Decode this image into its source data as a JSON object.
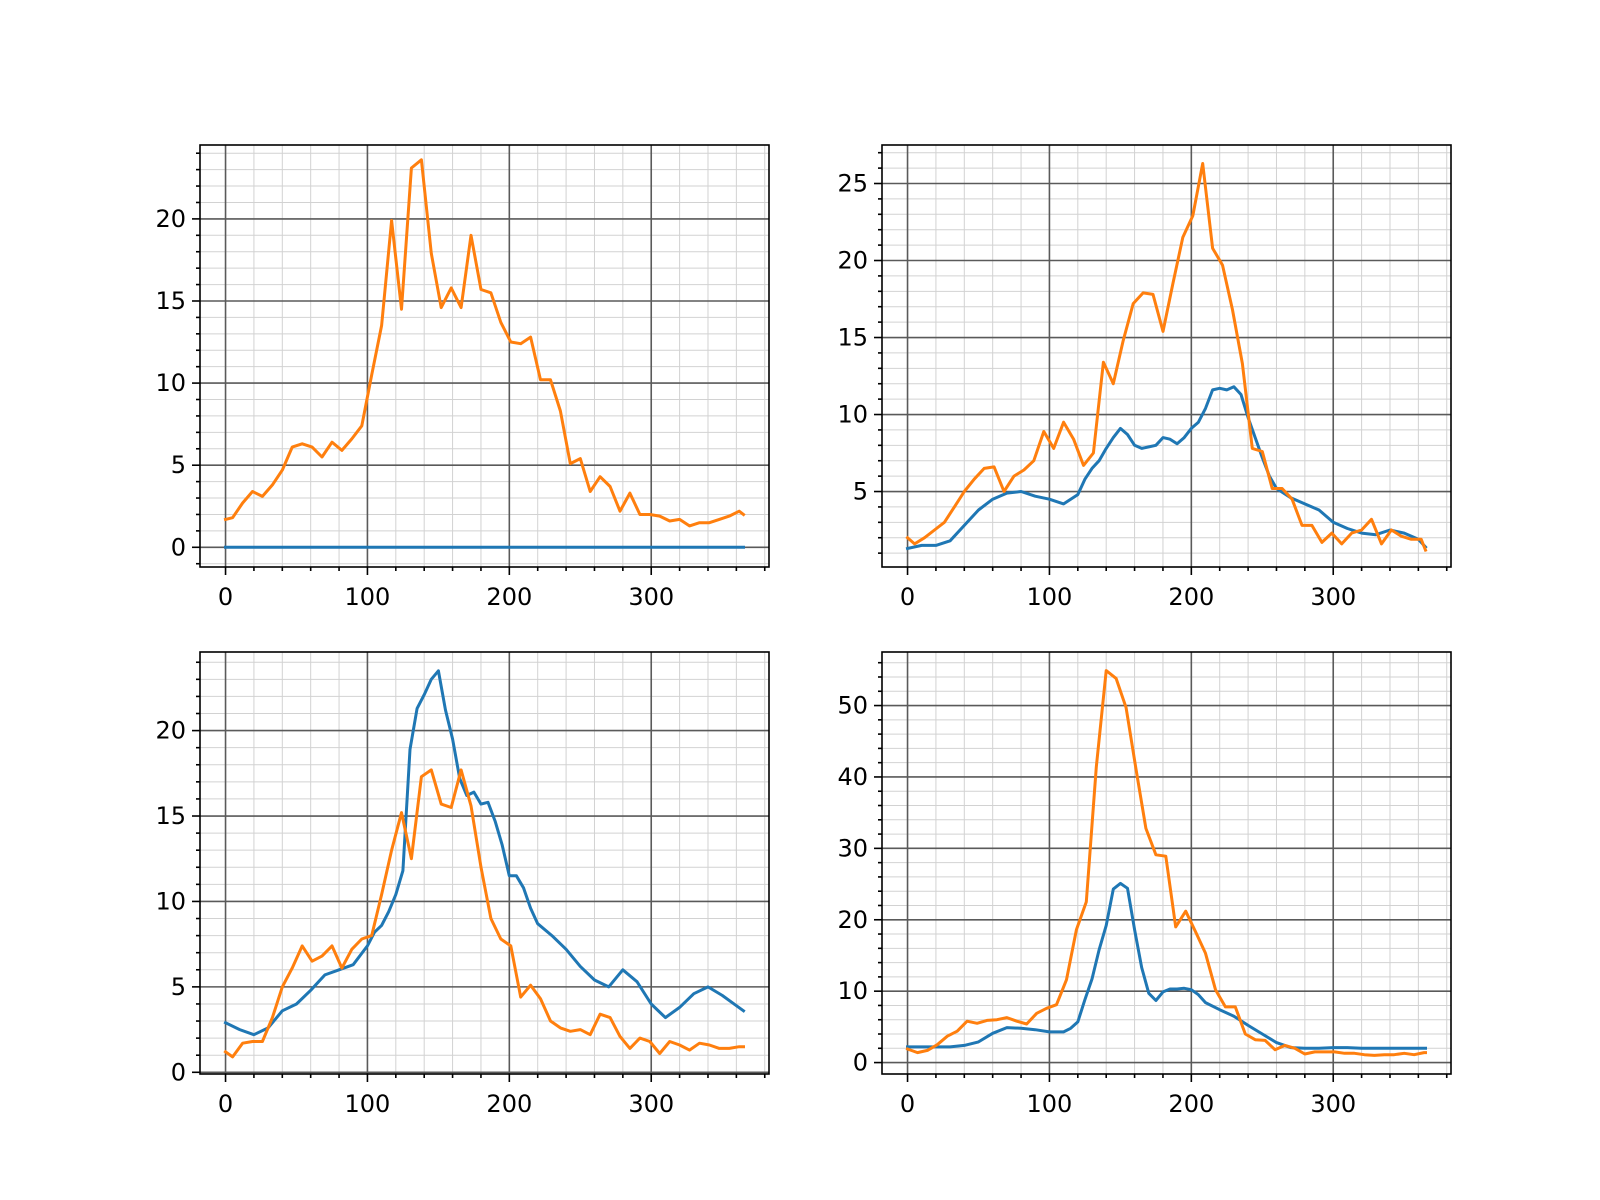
{
  "colors": {
    "series_1": "#1f77b4",
    "series_2": "#ff7f0e"
  },
  "chart_data": [
    {
      "type": "line",
      "xlim": [
        -18,
        383
      ],
      "ylim": [
        -1.2,
        24.5
      ],
      "x_ticks": [
        0,
        100,
        200,
        300
      ],
      "y_ticks": [
        0,
        5,
        10,
        15,
        20
      ],
      "x_minor_step": 20,
      "y_minor_step": 1,
      "grid": "major and minor",
      "series": [
        {
          "color": "#1f77b4",
          "x": [
            0,
            365
          ],
          "y": [
            0,
            0
          ]
        },
        {
          "color": "#ff7f0e",
          "x": [
            0,
            5,
            12,
            19,
            26,
            33,
            40,
            47,
            54,
            61,
            68,
            75,
            82,
            89,
            96,
            103,
            110,
            117,
            124,
            131,
            138,
            145,
            152,
            159,
            166,
            173,
            180,
            187,
            194,
            201,
            208,
            215,
            222,
            229,
            236,
            243,
            250,
            257,
            264,
            271,
            278,
            285,
            292,
            299,
            306,
            313,
            320,
            327,
            334,
            341,
            348,
            355,
            362,
            365
          ],
          "y": [
            1.7,
            1.8,
            2.7,
            3.4,
            3.1,
            3.8,
            4.7,
            6.1,
            6.3,
            6.1,
            5.5,
            6.4,
            5.9,
            6.6,
            7.4,
            10.5,
            13.5,
            19.9,
            14.5,
            23.1,
            23.6,
            17.9,
            14.6,
            15.8,
            14.6,
            19.0,
            15.7,
            15.5,
            13.7,
            12.5,
            12.4,
            12.8,
            10.2,
            10.2,
            8.3,
            5.1,
            5.4,
            3.4,
            4.3,
            3.7,
            2.2,
            3.3,
            2.0,
            2.0,
            1.9,
            1.6,
            1.7,
            1.3,
            1.5,
            1.5,
            1.7,
            1.9,
            2.2,
            2.0
          ]
        }
      ]
    },
    {
      "type": "line",
      "xlim": [
        -18,
        383
      ],
      "ylim": [
        0.1,
        27.5
      ],
      "x_ticks": [
        0,
        100,
        200,
        300
      ],
      "y_ticks": [
        5,
        10,
        15,
        20,
        25
      ],
      "x_minor_step": 20,
      "y_minor_step": 1,
      "grid": "major and minor",
      "series": [
        {
          "color": "#1f77b4",
          "x": [
            0,
            10,
            20,
            30,
            40,
            50,
            60,
            70,
            80,
            90,
            100,
            110,
            120,
            125,
            130,
            135,
            140,
            145,
            150,
            155,
            160,
            165,
            170,
            175,
            180,
            185,
            190,
            195,
            200,
            205,
            210,
            215,
            220,
            225,
            230,
            235,
            240,
            245,
            250,
            255,
            260,
            270,
            280,
            290,
            300,
            310,
            320,
            330,
            340,
            350,
            360,
            365
          ],
          "y": [
            1.3,
            1.5,
            1.5,
            1.8,
            2.8,
            3.8,
            4.5,
            4.9,
            5.0,
            4.7,
            4.5,
            4.2,
            4.8,
            5.8,
            6.5,
            7.0,
            7.8,
            8.5,
            9.1,
            8.7,
            8.0,
            7.8,
            7.9,
            8.0,
            8.5,
            8.4,
            8.1,
            8.5,
            9.1,
            9.5,
            10.4,
            11.6,
            11.7,
            11.6,
            11.8,
            11.3,
            9.8,
            8.5,
            7.2,
            6.0,
            5.2,
            4.6,
            4.2,
            3.8,
            3.0,
            2.6,
            2.3,
            2.2,
            2.5,
            2.3,
            1.9,
            1.4
          ]
        },
        {
          "color": "#ff7f0e",
          "x": [
            0,
            5,
            12,
            19,
            26,
            33,
            40,
            47,
            54,
            61,
            68,
            75,
            82,
            89,
            96,
            103,
            110,
            117,
            124,
            131,
            138,
            145,
            152,
            159,
            166,
            173,
            180,
            187,
            194,
            201,
            208,
            215,
            222,
            229,
            236,
            243,
            250,
            257,
            264,
            271,
            278,
            285,
            292,
            299,
            306,
            313,
            320,
            327,
            334,
            341,
            348,
            355,
            362,
            365
          ],
          "y": [
            2.0,
            1.6,
            2.0,
            2.5,
            3.0,
            4.0,
            5.0,
            5.8,
            6.5,
            6.6,
            5.0,
            6.0,
            6.4,
            7.0,
            8.9,
            7.8,
            9.5,
            8.4,
            6.7,
            7.5,
            13.4,
            12.0,
            14.8,
            17.2,
            17.9,
            17.8,
            15.4,
            18.5,
            21.5,
            22.9,
            26.3,
            20.8,
            19.7,
            16.8,
            13.3,
            7.8,
            7.6,
            5.2,
            5.2,
            4.5,
            2.8,
            2.8,
            1.7,
            2.3,
            1.6,
            2.3,
            2.5,
            3.2,
            1.6,
            2.5,
            2.1,
            1.9,
            1.9,
            1.2
          ]
        }
      ]
    },
    {
      "type": "line",
      "xlim": [
        -18,
        383
      ],
      "ylim": [
        -0.1,
        24.6
      ],
      "x_ticks": [
        0,
        100,
        200,
        300
      ],
      "y_ticks": [
        0,
        5,
        10,
        15,
        20
      ],
      "x_minor_step": 20,
      "y_minor_step": 1,
      "grid": "major and minor",
      "series": [
        {
          "color": "#1f77b4",
          "x": [
            0,
            10,
            20,
            30,
            40,
            50,
            60,
            70,
            80,
            90,
            100,
            105,
            110,
            115,
            120,
            125,
            130,
            135,
            140,
            145,
            150,
            155,
            160,
            165,
            170,
            175,
            180,
            185,
            190,
            195,
            200,
            205,
            210,
            215,
            220,
            230,
            240,
            250,
            260,
            270,
            280,
            290,
            300,
            310,
            320,
            330,
            340,
            350,
            360,
            365
          ],
          "y": [
            2.9,
            2.5,
            2.2,
            2.6,
            3.6,
            4.0,
            4.8,
            5.7,
            6.0,
            6.3,
            7.4,
            8.2,
            8.6,
            9.4,
            10.4,
            11.8,
            18.9,
            21.3,
            22.1,
            23.0,
            23.5,
            21.2,
            19.5,
            17.2,
            16.2,
            16.4,
            15.7,
            15.8,
            14.7,
            13.3,
            11.5,
            11.5,
            10.8,
            9.6,
            8.7,
            8.0,
            7.2,
            6.2,
            5.4,
            5.0,
            6.0,
            5.3,
            4.0,
            3.2,
            3.8,
            4.6,
            5.0,
            4.5,
            3.9,
            3.6
          ]
        },
        {
          "color": "#ff7f0e",
          "x": [
            0,
            5,
            12,
            19,
            26,
            33,
            40,
            47,
            54,
            61,
            68,
            75,
            82,
            89,
            96,
            103,
            110,
            117,
            124,
            131,
            138,
            145,
            152,
            159,
            166,
            173,
            180,
            187,
            194,
            201,
            208,
            215,
            222,
            229,
            236,
            243,
            250,
            257,
            264,
            271,
            278,
            285,
            292,
            299,
            306,
            313,
            320,
            327,
            334,
            341,
            348,
            355,
            362,
            365
          ],
          "y": [
            1.2,
            0.9,
            1.7,
            1.8,
            1.8,
            3.2,
            5.0,
            6.1,
            7.4,
            6.5,
            6.8,
            7.4,
            6.1,
            7.2,
            7.8,
            8.0,
            10.4,
            13.0,
            15.2,
            12.5,
            17.3,
            17.7,
            15.7,
            15.5,
            17.7,
            15.6,
            12.0,
            9.0,
            7.8,
            7.4,
            4.4,
            5.1,
            4.3,
            3.0,
            2.6,
            2.4,
            2.5,
            2.2,
            3.4,
            3.2,
            2.1,
            1.4,
            2.0,
            1.8,
            1.1,
            1.8,
            1.6,
            1.3,
            1.7,
            1.6,
            1.4,
            1.4,
            1.5,
            1.5
          ]
        }
      ]
    },
    {
      "type": "line",
      "xlim": [
        -18,
        383
      ],
      "ylim": [
        -1.6,
        57.5
      ],
      "x_ticks": [
        0,
        100,
        200,
        300
      ],
      "y_ticks": [
        0,
        10,
        20,
        30,
        40,
        50
      ],
      "x_minor_step": 20,
      "y_minor_step": 2,
      "grid": "major and minor",
      "series": [
        {
          "color": "#1f77b4",
          "x": [
            0,
            10,
            20,
            30,
            40,
            50,
            60,
            70,
            80,
            90,
            100,
            110,
            115,
            120,
            125,
            130,
            135,
            140,
            145,
            150,
            155,
            160,
            165,
            170,
            175,
            180,
            185,
            190,
            195,
            200,
            205,
            210,
            220,
            230,
            240,
            250,
            260,
            270,
            280,
            290,
            300,
            310,
            320,
            330,
            340,
            350,
            360,
            365
          ],
          "y": [
            2.2,
            2.2,
            2.2,
            2.2,
            2.4,
            2.9,
            4.1,
            4.9,
            4.8,
            4.6,
            4.3,
            4.3,
            4.8,
            5.7,
            8.8,
            11.7,
            15.8,
            19.2,
            24.3,
            25.1,
            24.4,
            18.6,
            13.3,
            9.7,
            8.7,
            9.9,
            10.3,
            10.3,
            10.4,
            10.2,
            9.5,
            8.4,
            7.4,
            6.5,
            5.2,
            4.0,
            2.8,
            2.1,
            2.0,
            2.0,
            2.1,
            2.1,
            2.0,
            2.0,
            2.0,
            2.0,
            2.0,
            2.0
          ]
        },
        {
          "color": "#ff7f0e",
          "x": [
            0,
            7,
            14,
            21,
            28,
            35,
            42,
            49,
            56,
            63,
            70,
            77,
            84,
            91,
            98,
            105,
            112,
            119,
            126,
            133,
            140,
            147,
            154,
            161,
            168,
            175,
            182,
            189,
            196,
            203,
            210,
            217,
            224,
            231,
            238,
            245,
            252,
            259,
            266,
            273,
            280,
            287,
            294,
            301,
            308,
            315,
            322,
            329,
            336,
            343,
            350,
            357,
            364,
            365
          ],
          "y": [
            1.9,
            1.4,
            1.7,
            2.5,
            3.7,
            4.4,
            5.8,
            5.5,
            5.9,
            6.0,
            6.3,
            5.8,
            5.4,
            6.9,
            7.6,
            8.1,
            11.6,
            18.6,
            22.5,
            41.4,
            54.9,
            53.8,
            49.7,
            41.1,
            32.8,
            29.1,
            28.9,
            19.0,
            21.2,
            18.3,
            15.3,
            10.2,
            7.8,
            7.8,
            4.0,
            3.2,
            3.1,
            1.8,
            2.4,
            2.0,
            1.2,
            1.5,
            1.5,
            1.5,
            1.3,
            1.3,
            1.1,
            1.0,
            1.1,
            1.1,
            1.3,
            1.1,
            1.4,
            1.4
          ]
        }
      ]
    }
  ]
}
